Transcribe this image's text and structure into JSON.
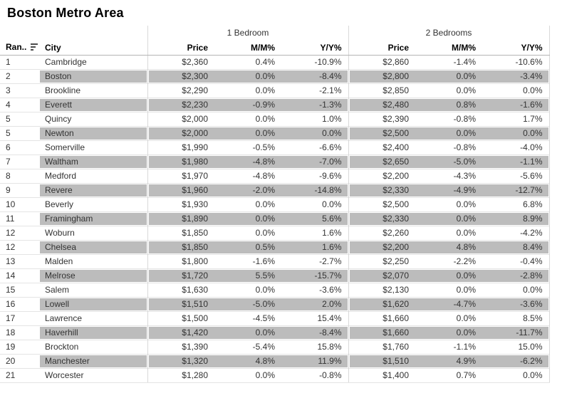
{
  "title": "Boston Metro Area",
  "table": {
    "rank_header": "Ran..",
    "city_header": "City",
    "sort_icon": "sort-descending-icon",
    "groups": [
      {
        "label": "1 Bedroom",
        "columns": [
          "Price",
          "M/M%",
          "Y/Y%"
        ]
      },
      {
        "label": "2 Bedrooms",
        "columns": [
          "Price",
          "M/M%",
          "Y/Y%"
        ]
      }
    ],
    "rows": [
      {
        "rank": "1",
        "city": "Cambridge",
        "br1": {
          "price": "$2,360",
          "mm": "0.4%",
          "yy": "-10.9%"
        },
        "br2": {
          "price": "$2,860",
          "mm": "-1.4%",
          "yy": "-10.6%"
        }
      },
      {
        "rank": "2",
        "city": "Boston",
        "br1": {
          "price": "$2,300",
          "mm": "0.0%",
          "yy": "-8.4%"
        },
        "br2": {
          "price": "$2,800",
          "mm": "0.0%",
          "yy": "-3.4%"
        }
      },
      {
        "rank": "3",
        "city": "Brookline",
        "br1": {
          "price": "$2,290",
          "mm": "0.0%",
          "yy": "-2.1%"
        },
        "br2": {
          "price": "$2,850",
          "mm": "0.0%",
          "yy": "0.0%"
        }
      },
      {
        "rank": "4",
        "city": "Everett",
        "br1": {
          "price": "$2,230",
          "mm": "-0.9%",
          "yy": "-1.3%"
        },
        "br2": {
          "price": "$2,480",
          "mm": "0.8%",
          "yy": "-1.6%"
        }
      },
      {
        "rank": "5",
        "city": "Quincy",
        "br1": {
          "price": "$2,000",
          "mm": "0.0%",
          "yy": "1.0%"
        },
        "br2": {
          "price": "$2,390",
          "mm": "-0.8%",
          "yy": "1.7%"
        }
      },
      {
        "rank": "5",
        "city": "Newton",
        "br1": {
          "price": "$2,000",
          "mm": "0.0%",
          "yy": "0.0%"
        },
        "br2": {
          "price": "$2,500",
          "mm": "0.0%",
          "yy": "0.0%"
        }
      },
      {
        "rank": "6",
        "city": "Somerville",
        "br1": {
          "price": "$1,990",
          "mm": "-0.5%",
          "yy": "-6.6%"
        },
        "br2": {
          "price": "$2,400",
          "mm": "-0.8%",
          "yy": "-4.0%"
        }
      },
      {
        "rank": "7",
        "city": "Waltham",
        "br1": {
          "price": "$1,980",
          "mm": "-4.8%",
          "yy": "-7.0%"
        },
        "br2": {
          "price": "$2,650",
          "mm": "-5.0%",
          "yy": "-1.1%"
        }
      },
      {
        "rank": "8",
        "city": "Medford",
        "br1": {
          "price": "$1,970",
          "mm": "-4.8%",
          "yy": "-9.6%"
        },
        "br2": {
          "price": "$2,200",
          "mm": "-4.3%",
          "yy": "-5.6%"
        }
      },
      {
        "rank": "9",
        "city": "Revere",
        "br1": {
          "price": "$1,960",
          "mm": "-2.0%",
          "yy": "-14.8%"
        },
        "br2": {
          "price": "$2,330",
          "mm": "-4.9%",
          "yy": "-12.7%"
        }
      },
      {
        "rank": "10",
        "city": "Beverly",
        "br1": {
          "price": "$1,930",
          "mm": "0.0%",
          "yy": "0.0%"
        },
        "br2": {
          "price": "$2,500",
          "mm": "0.0%",
          "yy": "6.8%"
        }
      },
      {
        "rank": "11",
        "city": "Framingham",
        "br1": {
          "price": "$1,890",
          "mm": "0.0%",
          "yy": "5.6%"
        },
        "br2": {
          "price": "$2,330",
          "mm": "0.0%",
          "yy": "8.9%"
        }
      },
      {
        "rank": "12",
        "city": "Woburn",
        "br1": {
          "price": "$1,850",
          "mm": "0.0%",
          "yy": "1.6%"
        },
        "br2": {
          "price": "$2,260",
          "mm": "0.0%",
          "yy": "-4.2%"
        }
      },
      {
        "rank": "12",
        "city": "Chelsea",
        "br1": {
          "price": "$1,850",
          "mm": "0.5%",
          "yy": "1.6%"
        },
        "br2": {
          "price": "$2,200",
          "mm": "4.8%",
          "yy": "8.4%"
        }
      },
      {
        "rank": "13",
        "city": "Malden",
        "br1": {
          "price": "$1,800",
          "mm": "-1.6%",
          "yy": "-2.7%"
        },
        "br2": {
          "price": "$2,250",
          "mm": "-2.2%",
          "yy": "-0.4%"
        }
      },
      {
        "rank": "14",
        "city": "Melrose",
        "br1": {
          "price": "$1,720",
          "mm": "5.5%",
          "yy": "-15.7%"
        },
        "br2": {
          "price": "$2,070",
          "mm": "0.0%",
          "yy": "-2.8%"
        }
      },
      {
        "rank": "15",
        "city": "Salem",
        "br1": {
          "price": "$1,630",
          "mm": "0.0%",
          "yy": "-3.6%"
        },
        "br2": {
          "price": "$2,130",
          "mm": "0.0%",
          "yy": "0.0%"
        }
      },
      {
        "rank": "16",
        "city": "Lowell",
        "br1": {
          "price": "$1,510",
          "mm": "-5.0%",
          "yy": "2.0%"
        },
        "br2": {
          "price": "$1,620",
          "mm": "-4.7%",
          "yy": "-3.6%"
        }
      },
      {
        "rank": "17",
        "city": "Lawrence",
        "br1": {
          "price": "$1,500",
          "mm": "-4.5%",
          "yy": "15.4%"
        },
        "br2": {
          "price": "$1,660",
          "mm": "0.0%",
          "yy": "8.5%"
        }
      },
      {
        "rank": "18",
        "city": "Haverhill",
        "br1": {
          "price": "$1,420",
          "mm": "0.0%",
          "yy": "-8.4%"
        },
        "br2": {
          "price": "$1,660",
          "mm": "0.0%",
          "yy": "-11.7%"
        }
      },
      {
        "rank": "19",
        "city": "Brockton",
        "br1": {
          "price": "$1,390",
          "mm": "-5.4%",
          "yy": "15.8%"
        },
        "br2": {
          "price": "$1,760",
          "mm": "-1.1%",
          "yy": "15.0%"
        }
      },
      {
        "rank": "20",
        "city": "Manchester",
        "br1": {
          "price": "$1,320",
          "mm": "4.8%",
          "yy": "11.9%"
        },
        "br2": {
          "price": "$1,510",
          "mm": "4.9%",
          "yy": "-6.2%"
        }
      },
      {
        "rank": "21",
        "city": "Worcester",
        "br1": {
          "price": "$1,280",
          "mm": "0.0%",
          "yy": "-0.8%"
        },
        "br2": {
          "price": "$1,400",
          "mm": "0.7%",
          "yy": "0.0%"
        }
      }
    ]
  },
  "colors": {
    "band": "#bcbcbc",
    "row_line": "#e4e4e4",
    "header_line": "#b4b4b4",
    "group_divider": "#d9d9d9",
    "text": "#333333",
    "header_text": "#000000"
  },
  "chart_data": {
    "type": "table",
    "title": "Boston Metro Area",
    "columns": [
      "Rank",
      "City",
      "1BR Price ($)",
      "1BR M/M %",
      "1BR Y/Y %",
      "2BR Price ($)",
      "2BR M/M %",
      "2BR Y/Y %"
    ],
    "rows": [
      [
        1,
        "Cambridge",
        2360,
        0.4,
        -10.9,
        2860,
        -1.4,
        -10.6
      ],
      [
        2,
        "Boston",
        2300,
        0.0,
        -8.4,
        2800,
        0.0,
        -3.4
      ],
      [
        3,
        "Brookline",
        2290,
        0.0,
        -2.1,
        2850,
        0.0,
        0.0
      ],
      [
        4,
        "Everett",
        2230,
        -0.9,
        -1.3,
        2480,
        0.8,
        -1.6
      ],
      [
        5,
        "Quincy",
        2000,
        0.0,
        1.0,
        2390,
        -0.8,
        1.7
      ],
      [
        5,
        "Newton",
        2000,
        0.0,
        0.0,
        2500,
        0.0,
        0.0
      ],
      [
        6,
        "Somerville",
        1990,
        -0.5,
        -6.6,
        2400,
        -0.8,
        -4.0
      ],
      [
        7,
        "Waltham",
        1980,
        -4.8,
        -7.0,
        2650,
        -5.0,
        -1.1
      ],
      [
        8,
        "Medford",
        1970,
        -4.8,
        -9.6,
        2200,
        -4.3,
        -5.6
      ],
      [
        9,
        "Revere",
        1960,
        -2.0,
        -14.8,
        2330,
        -4.9,
        -12.7
      ],
      [
        10,
        "Beverly",
        1930,
        0.0,
        0.0,
        2500,
        0.0,
        6.8
      ],
      [
        11,
        "Framingham",
        1890,
        0.0,
        5.6,
        2330,
        0.0,
        8.9
      ],
      [
        12,
        "Woburn",
        1850,
        0.0,
        1.6,
        2260,
        0.0,
        -4.2
      ],
      [
        12,
        "Chelsea",
        1850,
        0.5,
        1.6,
        2200,
        4.8,
        8.4
      ],
      [
        13,
        "Malden",
        1800,
        -1.6,
        -2.7,
        2250,
        -2.2,
        -0.4
      ],
      [
        14,
        "Melrose",
        1720,
        5.5,
        -15.7,
        2070,
        0.0,
        -2.8
      ],
      [
        15,
        "Salem",
        1630,
        0.0,
        -3.6,
        2130,
        0.0,
        0.0
      ],
      [
        16,
        "Lowell",
        1510,
        -5.0,
        2.0,
        1620,
        -4.7,
        -3.6
      ],
      [
        17,
        "Lawrence",
        1500,
        -4.5,
        15.4,
        1660,
        0.0,
        8.5
      ],
      [
        18,
        "Haverhill",
        1420,
        0.0,
        -8.4,
        1660,
        0.0,
        -11.7
      ],
      [
        19,
        "Brockton",
        1390,
        -5.4,
        15.8,
        1760,
        -1.1,
        15.0
      ],
      [
        20,
        "Manchester",
        1320,
        4.8,
        11.9,
        1510,
        4.9,
        -6.2
      ],
      [
        21,
        "Worcester",
        1280,
        0.0,
        -0.8,
        1400,
        0.7,
        0.0
      ]
    ],
    "banding": "alternating rows shaded gray starting with row 2",
    "legend_position": "none",
    "grid": "row separators and group dividers"
  }
}
